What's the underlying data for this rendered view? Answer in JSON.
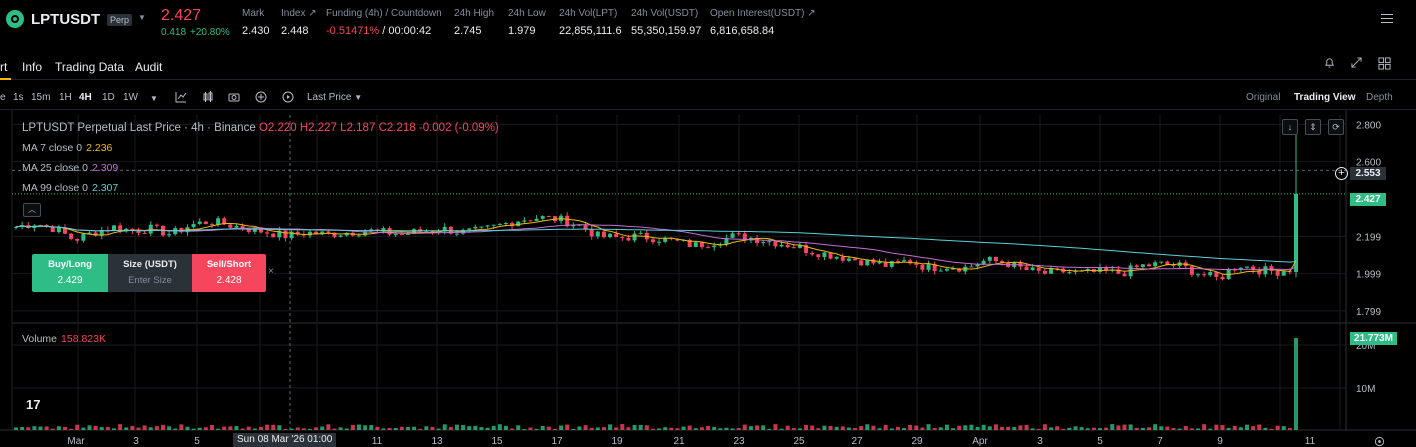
{
  "ticker": {
    "symbol": "LPTUSDT",
    "contract_badge": "Perp",
    "last_price": "2.427",
    "mark_mini": "0.418",
    "change_pct": "+20.80%",
    "stats": [
      {
        "label": "Mark",
        "value": "2.430"
      },
      {
        "label": "Index ↗",
        "value": "2.448"
      },
      {
        "label": "Funding (4h) / Countdown",
        "value_red": "-0.51471%",
        "value_plain": " / 00:00:42"
      },
      {
        "label": "24h High",
        "value": "2.745"
      },
      {
        "label": "24h Low",
        "value": "1.979"
      },
      {
        "label": "24h Vol(LPT)",
        "value": "22,855,111.6"
      },
      {
        "label": "24h Vol(USDT)",
        "value": "55,350,159.97"
      },
      {
        "label": "Open Interest(USDT) ↗",
        "value": "6,816,658.84"
      }
    ]
  },
  "tabs": {
    "chart": "rt",
    "info": "Info",
    "trading_data": "Trading Data",
    "audit": "Audit"
  },
  "toolbar": {
    "intervals": [
      "e",
      "1s",
      "15m",
      "1H",
      "4H",
      "1D",
      "1W"
    ],
    "active_interval": "4H",
    "price_type": "Last Price",
    "views": [
      "Original",
      "Trading View",
      "Depth"
    ],
    "active_view": "Trading View"
  },
  "legend": {
    "title": "LPTUSDT Perpetual Last Price · 4h · Binance",
    "open": "O2.220",
    "high": "H2.227",
    "low": "L2.187",
    "close": "C2.218",
    "change": "-0.002 (-0.09%)",
    "ma7_label": "MA 7 close 0",
    "ma7_value": "2.236",
    "ma25_label": "MA 25 close 0",
    "ma25_value": "2.309",
    "ma99_label": "MA 99 close 0",
    "ma99_value": "2.307",
    "volume_label": "Volume",
    "volume_value": "158.823K"
  },
  "quick_trade": {
    "buy_label": "Buy/Long",
    "buy_price": "2.429",
    "size_label": "Size (USDT)",
    "size_placeholder": "Enter Size",
    "sell_label": "Sell/Short",
    "sell_price": "2.428",
    "close": "×"
  },
  "price_axis": {
    "ticks": [
      "2.800",
      "2.600",
      "2.199",
      "1.999",
      "1.799"
    ],
    "crosshair_price": "2.553",
    "last_price_tag": "2.427",
    "volume_ticks": [
      "20M",
      "10M"
    ],
    "volume_tag": "21.773M"
  },
  "time_axis": {
    "labels": [
      "Mar",
      "3",
      "5",
      "9",
      "11",
      "13",
      "15",
      "17",
      "19",
      "21",
      "23",
      "25",
      "27",
      "29",
      "Apr",
      "3",
      "5",
      "7",
      "9",
      "11"
    ],
    "crosshair_time": "Sun 08 Mar '26   01:00"
  },
  "colors": {
    "up": "#2ebd85",
    "down": "#f6465d",
    "ma7": "#f0b90b",
    "ma25": "#c86dd7",
    "ma99": "#5ad1d8",
    "background": "#000000"
  },
  "chart_data": {
    "type": "candlestick",
    "interval": "4h",
    "ylim": [
      1.75,
      2.85
    ],
    "close_path": [
      2.25,
      2.27,
      2.24,
      2.18,
      2.22,
      2.25,
      2.23,
      2.24,
      2.21,
      2.26,
      2.28,
      2.26,
      2.24,
      2.22,
      2.2,
      2.22,
      2.21,
      2.22,
      2.23,
      2.22,
      2.21,
      2.23,
      2.24,
      2.22,
      2.23,
      2.26,
      2.29,
      2.3,
      2.29,
      2.26,
      2.2,
      2.19,
      2.2,
      2.19,
      2.17,
      2.15,
      2.17,
      2.2,
      2.19,
      2.17,
      2.15,
      2.12,
      2.1,
      2.08,
      2.06,
      2.04,
      2.07,
      2.03,
      2.04,
      2.03,
      2.07,
      2.06,
      2.02,
      2.0,
      2.01,
      2.0,
      2.01,
      2.0,
      2.04,
      2.05,
      2.04,
      2.0,
      1.97,
      2.05,
      2.02,
      2.01,
      2.03,
      2.427
    ],
    "volume_spike": "21.773M"
  }
}
